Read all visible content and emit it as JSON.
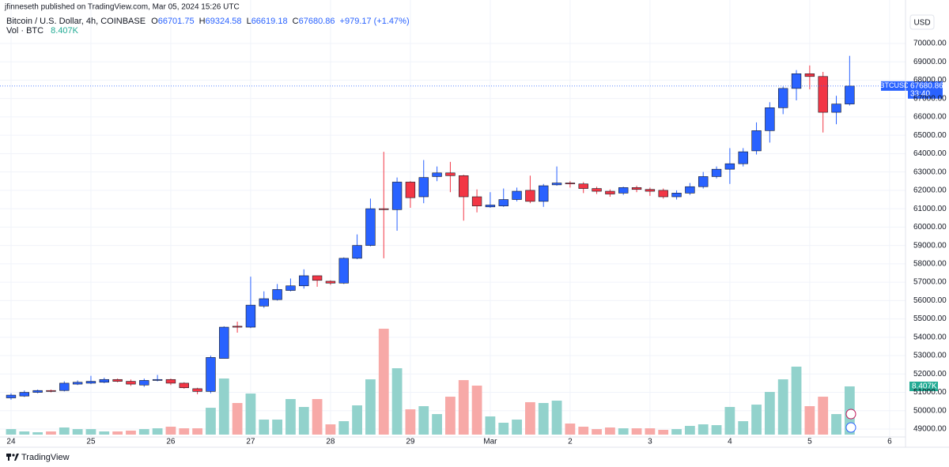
{
  "chart_data": {
    "type": "candlestick",
    "publisher": "jfinneseth published on TradingView.com, Mar 05, 2024 15:26 UTC",
    "title": "Bitcoin / U.S. Dollar, 4h, COINBASE",
    "ohlc_labels": [
      "O",
      "H",
      "L",
      "C"
    ],
    "change_label": "+979.17 (+1.47%)",
    "symbol": "BTCUSD",
    "countdown": "33:40",
    "y_unit": "USD",
    "brand": "TradingView",
    "up_color": "#2962ff",
    "down_color": "#f23645",
    "grid": true,
    "x": [
      0,
      1,
      2,
      3,
      4,
      5,
      6,
      7,
      8,
      9,
      10,
      11,
      12,
      13,
      14,
      15,
      16,
      17,
      18,
      19,
      20,
      21,
      22,
      23,
      24,
      25,
      26,
      27,
      28,
      29,
      30,
      31,
      32,
      33,
      34,
      35,
      36,
      37,
      38,
      39,
      40,
      41,
      42,
      43,
      44,
      45,
      46,
      47,
      48,
      49,
      50,
      51,
      52,
      53,
      54,
      55,
      56,
      57,
      58,
      59,
      60,
      61,
      62,
      63
    ],
    "open": [
      50700,
      50800,
      51000,
      51100,
      51100,
      51450,
      51500,
      51550,
      51700,
      51600,
      51400,
      51650,
      51700,
      51500,
      51200,
      51050,
      52850,
      54600,
      54550,
      55700,
      56050,
      56550,
      56800,
      57350,
      57050,
      56950,
      58300,
      59000,
      61000,
      60950,
      62450,
      61650,
      62750,
      62950,
      62800,
      61650,
      61100,
      61150,
      61500,
      62000,
      61400,
      62300,
      62400,
      62350,
      62100,
      61950,
      61850,
      62150,
      62050,
      62000,
      61650,
      61850,
      62200,
      62750,
      63150,
      63450,
      64150,
      65250,
      66500,
      67550,
      68350,
      68200,
      66250,
      66701.75
    ],
    "high": [
      50950,
      51100,
      51150,
      51150,
      51600,
      51650,
      51900,
      51800,
      51750,
      51700,
      51750,
      51950,
      51750,
      51550,
      51250,
      53000,
      54600,
      54850,
      57300,
      56500,
      56900,
      57200,
      57700,
      57350,
      57100,
      58350,
      59600,
      61550,
      64100,
      62700,
      62500,
      63650,
      63300,
      63550,
      62850,
      62050,
      61900,
      62100,
      62150,
      62800,
      62350,
      63300,
      62500,
      62450,
      62200,
      62050,
      62200,
      62250,
      62150,
      62100,
      62000,
      62400,
      63000,
      63300,
      64300,
      64300,
      65700,
      66800,
      67650,
      68550,
      68800,
      68450,
      67150,
      69324.58
    ],
    "low": [
      50600,
      50750,
      50950,
      51000,
      51050,
      51400,
      51450,
      51500,
      51550,
      51350,
      51300,
      51600,
      51400,
      51200,
      50900,
      50950,
      52850,
      54250,
      54500,
      55600,
      56000,
      56500,
      56650,
      56750,
      56850,
      56900,
      58250,
      58950,
      58300,
      59800,
      61050,
      61300,
      62500,
      61900,
      60350,
      60800,
      61050,
      61100,
      61400,
      61300,
      61100,
      62250,
      62150,
      61850,
      61800,
      61650,
      61750,
      61900,
      61700,
      61550,
      61500,
      61750,
      62100,
      62650,
      62350,
      63300,
      63950,
      64600,
      66150,
      66900,
      67500,
      65150,
      65600,
      66619.18
    ],
    "close": [
      50850,
      51000,
      51100,
      51050,
      51500,
      51550,
      51600,
      51700,
      51600,
      51450,
      51650,
      51700,
      51500,
      51250,
      51050,
      52900,
      54550,
      54550,
      55750,
      56100,
      56600,
      56800,
      57350,
      57100,
      56950,
      58300,
      59000,
      61000,
      60950,
      62450,
      61600,
      62700,
      62950,
      62800,
      61650,
      61150,
      61200,
      61500,
      61950,
      61400,
      62250,
      62400,
      62350,
      62100,
      61950,
      61800,
      62150,
      62050,
      61950,
      61650,
      61850,
      62200,
      62750,
      63150,
      63450,
      64100,
      65250,
      66500,
      67550,
      68350,
      68200,
      66250,
      66700,
      67680.86
    ],
    "volume": {
      "name": "Vol · BTC",
      "up_color": "#92d2cc",
      "down_color": "#f7a9a7",
      "label": "8.407K",
      "ylim": [
        0,
        73300
      ],
      "values": [
        960,
        550,
        410,
        550,
        1240,
        960,
        960,
        550,
        550,
        690,
        960,
        1100,
        1380,
        1100,
        1100,
        4680,
        9780,
        5510,
        7160,
        2620,
        2620,
        6200,
        4820,
        6200,
        1790,
        2340,
        5100,
        9640,
        18460,
        11570,
        4410,
        4960,
        3580,
        6610,
        9500,
        8540,
        3170,
        2070,
        2620,
        5650,
        5510,
        5920,
        1930,
        1380,
        960,
        1240,
        1100,
        1100,
        1100,
        830,
        960,
        1520,
        1790,
        1650,
        4820,
        2340,
        5230,
        7440,
        9640,
        11850,
        4960,
        6610,
        3580,
        8407
      ]
    },
    "xlim": [
      -0.83,
      66.9
    ],
    "xticks": [
      {
        "value": 0,
        "label": "24"
      },
      {
        "value": 6,
        "label": "25"
      },
      {
        "value": 12,
        "label": "26"
      },
      {
        "value": 18,
        "label": "27"
      },
      {
        "value": 24,
        "label": "28"
      },
      {
        "value": 30,
        "label": "29"
      },
      {
        "value": 36,
        "label": "Mar"
      },
      {
        "value": 42,
        "label": "2"
      },
      {
        "value": 48,
        "label": "3"
      },
      {
        "value": 54,
        "label": "4"
      },
      {
        "value": 60,
        "label": "5"
      },
      {
        "value": 66,
        "label": "6"
      }
    ],
    "ylim": [
      48700,
      71590
    ],
    "yticks": [
      {
        "value": 49000,
        "label": "49000.00"
      },
      {
        "value": 50000,
        "label": "50000.00"
      },
      {
        "value": 51000,
        "label": "51000.00"
      },
      {
        "value": 52000,
        "label": "52000.00"
      },
      {
        "value": 53000,
        "label": "53000.00"
      },
      {
        "value": 54000,
        "label": "54000.00"
      },
      {
        "value": 55000,
        "label": "55000.00"
      },
      {
        "value": 56000,
        "label": "56000.00"
      },
      {
        "value": 57000,
        "label": "57000.00"
      },
      {
        "value": 58000,
        "label": "58000.00"
      },
      {
        "value": 59000,
        "label": "59000.00"
      },
      {
        "value": 60000,
        "label": "60000.00"
      },
      {
        "value": 61000,
        "label": "61000.00"
      },
      {
        "value": 62000,
        "label": "62000.00"
      },
      {
        "value": 63000,
        "label": "63000.00"
      },
      {
        "value": 64000,
        "label": "64000.00"
      },
      {
        "value": 65000,
        "label": "65000.00"
      },
      {
        "value": 66000,
        "label": "66000.00"
      },
      {
        "value": 67000,
        "label": "67000.00"
      },
      {
        "value": 68000,
        "label": "68000.00"
      },
      {
        "value": 69000,
        "label": "69000.00"
      },
      {
        "value": 70000,
        "label": "70000.00"
      }
    ]
  }
}
